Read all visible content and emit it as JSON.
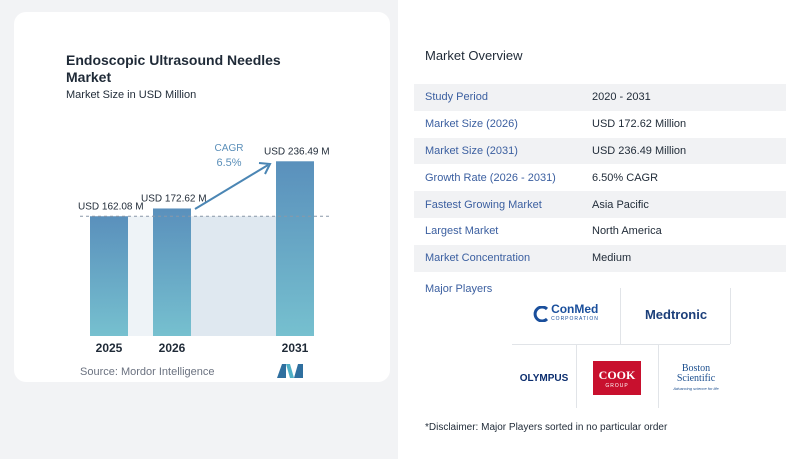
{
  "chart_data": {
    "type": "bar",
    "title": "Endoscopic Ultrasound Needles Market",
    "subtitle": "Market Size in USD Million",
    "categories": [
      "2025",
      "2026",
      "2031"
    ],
    "values": [
      162.08,
      172.62,
      236.49
    ],
    "value_labels": [
      "USD 162.08 M",
      "USD 172.62 M",
      "USD 236.49 M"
    ],
    "cagr_label": "CAGR",
    "cagr_value": "6.5%",
    "ylim": [
      0,
      245
    ],
    "grid": false,
    "colors": {
      "bar": "#5b93bd",
      "bar_last": "#5b93bd",
      "shade": "#dfe8f0",
      "arrow": "#4b86b4",
      "cagr_text": "#5b8fb9"
    }
  },
  "source": "Source:  Mordor Intelligence",
  "overview": {
    "title": "Market Overview",
    "rows": [
      {
        "key": "Study Period",
        "value": "2020 - 2031"
      },
      {
        "key": "Market Size (2026)",
        "value": "USD 172.62 Million"
      },
      {
        "key": "Market Size (2031)",
        "value": "USD 236.49 Million"
      },
      {
        "key": "Growth Rate (2026 - 2031)",
        "value": "6.50% CAGR"
      },
      {
        "key": "Fastest Growing Market",
        "value": "Asia Pacific"
      },
      {
        "key": "Largest Market",
        "value": "North America"
      },
      {
        "key": "Market Concentration",
        "value": "Medium"
      }
    ]
  },
  "players": {
    "title": "Major Players",
    "conmed": {
      "name": "ConMed",
      "sub": "CORPORATION"
    },
    "medtronic": "Medtronic",
    "olympus": "OLYMPUS",
    "cook": {
      "name": "COOK",
      "sub": "GROUP"
    },
    "boston": {
      "line1": "Boston",
      "line2": "Scientific",
      "tagline": "Advancing science for life"
    }
  },
  "disclaimer": "*Disclaimer: Major Players sorted in no particular order"
}
